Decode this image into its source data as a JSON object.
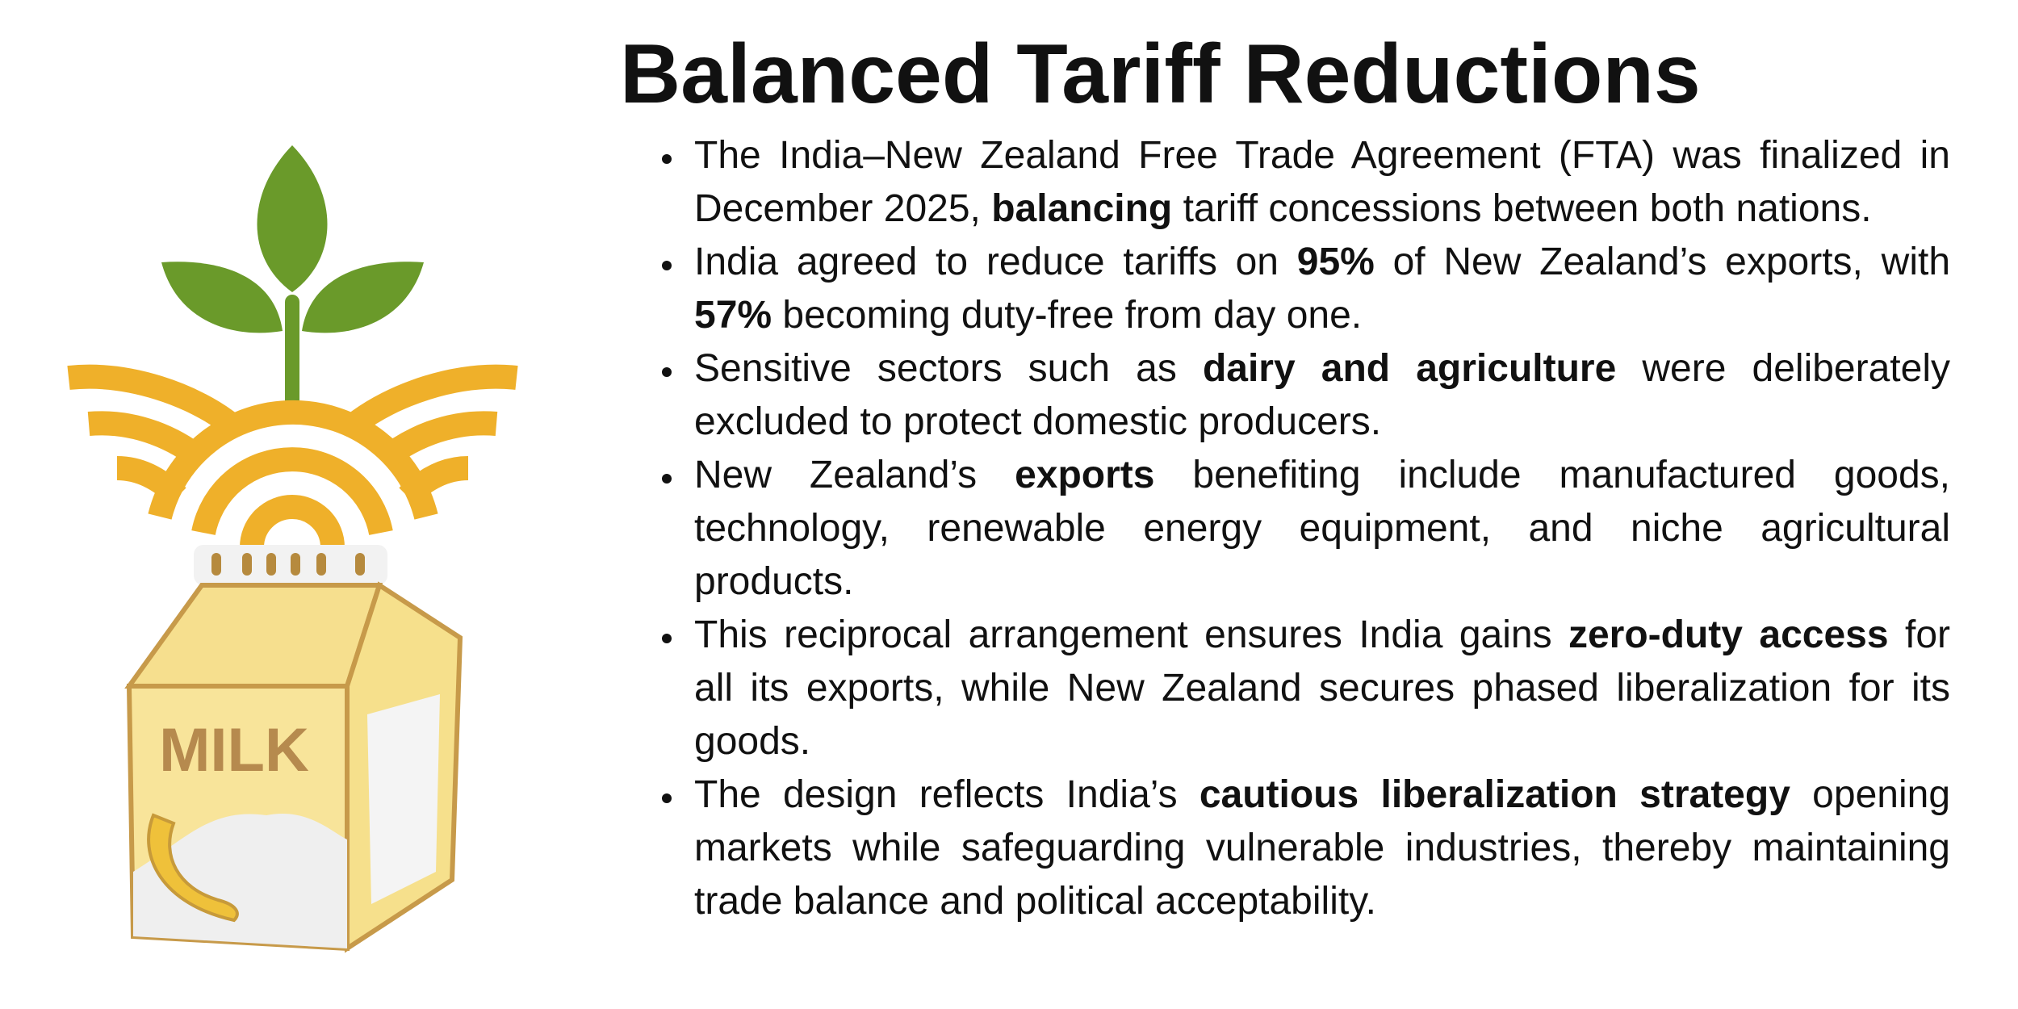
{
  "title": "Balanced Tariff Reductions",
  "bullets": [
    [
      {
        "text": "The India–New Zealand Free Trade Agreement (FTA) was finalized in December 2025, ",
        "bold": false
      },
      {
        "text": "balancing",
        "bold": true
      },
      {
        "text": " tariff concessions between both nations.",
        "bold": false
      }
    ],
    [
      {
        "text": "India agreed to reduce tariffs on ",
        "bold": false
      },
      {
        "text": "95%",
        "bold": true
      },
      {
        "text": " of New Zealand’s exports, with ",
        "bold": false
      },
      {
        "text": "57%",
        "bold": true
      },
      {
        "text": " becoming duty-free from day one.",
        "bold": false
      }
    ],
    [
      {
        "text": "Sensitive sectors such as ",
        "bold": false
      },
      {
        "text": "dairy and agriculture",
        "bold": true
      },
      {
        "text": " were deliberately excluded to protect domestic producers.",
        "bold": false
      }
    ],
    [
      {
        "text": "New Zealand’s ",
        "bold": false
      },
      {
        "text": "exports",
        "bold": true
      },
      {
        "text": " benefiting include manufactured goods, technology, renewable energy equipment, and niche agricultural products.",
        "bold": false
      }
    ],
    [
      {
        "text": "This reciprocal arrangement ensures India gains ",
        "bold": false
      },
      {
        "text": "zero-duty access",
        "bold": true
      },
      {
        "text": " for all its exports, while New Zealand secures phased liberalization for its goods.",
        "bold": false
      }
    ],
    [
      {
        "text": "The design reflects India’s ",
        "bold": false
      },
      {
        "text": "cautious liberalization strategy",
        "bold": true
      },
      {
        "text": " opening markets while safeguarding vulnerable industries, thereby maintaining trade balance and political acceptability.",
        "bold": false
      }
    ]
  ],
  "illustration": {
    "label": "MILK"
  }
}
